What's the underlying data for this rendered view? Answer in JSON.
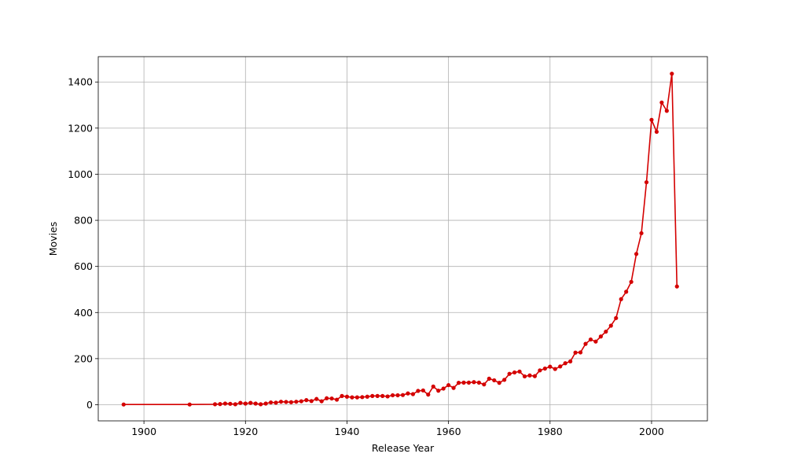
{
  "chart_data": {
    "type": "line",
    "title": "",
    "xlabel": "Release Year",
    "ylabel": "Movies",
    "xlim": [
      1891,
      2011
    ],
    "ylim": [
      -70,
      1510
    ],
    "xticks": [
      1900,
      1920,
      1940,
      1960,
      1980,
      2000
    ],
    "yticks": [
      0,
      200,
      400,
      600,
      800,
      1000,
      1200,
      1400
    ],
    "grid": true,
    "color": "#d40000",
    "series": [
      {
        "name": "",
        "x": [
          1896,
          1909,
          1914,
          1915,
          1916,
          1917,
          1918,
          1919,
          1920,
          1921,
          1922,
          1923,
          1924,
          1925,
          1926,
          1927,
          1928,
          1929,
          1930,
          1931,
          1932,
          1933,
          1934,
          1935,
          1936,
          1937,
          1938,
          1939,
          1940,
          1941,
          1942,
          1943,
          1944,
          1945,
          1946,
          1947,
          1948,
          1949,
          1950,
          1951,
          1952,
          1953,
          1954,
          1955,
          1956,
          1957,
          1958,
          1959,
          1960,
          1961,
          1962,
          1963,
          1964,
          1965,
          1966,
          1967,
          1968,
          1969,
          1970,
          1971,
          1972,
          1973,
          1974,
          1975,
          1976,
          1977,
          1978,
          1979,
          1980,
          1981,
          1982,
          1983,
          1984,
          1985,
          1986,
          1987,
          1988,
          1989,
          1990,
          1991,
          1992,
          1993,
          1994,
          1995,
          1996,
          1997,
          1998,
          1999,
          2000,
          2001,
          2002,
          2003,
          2004,
          2005
        ],
        "y": [
          1,
          1,
          2,
          3,
          5,
          4,
          2,
          8,
          5,
          8,
          5,
          2,
          5,
          10,
          9,
          13,
          12,
          11,
          13,
          15,
          20,
          16,
          25,
          15,
          28,
          27,
          22,
          38,
          35,
          32,
          32,
          33,
          35,
          38,
          38,
          38,
          36,
          41,
          41,
          42,
          49,
          46,
          60,
          62,
          44,
          79,
          61,
          70,
          85,
          73,
          95,
          96,
          96,
          98,
          96,
          88,
          113,
          106,
          95,
          108,
          134,
          140,
          144,
          123,
          127,
          124,
          149,
          157,
          165,
          155,
          166,
          180,
          188,
          226,
          227,
          264,
          283,
          274,
          296,
          317,
          343,
          376,
          458,
          490,
          533,
          654,
          744,
          965,
          1236,
          1184,
          1311,
          1275,
          1436,
          513
        ]
      }
    ]
  }
}
